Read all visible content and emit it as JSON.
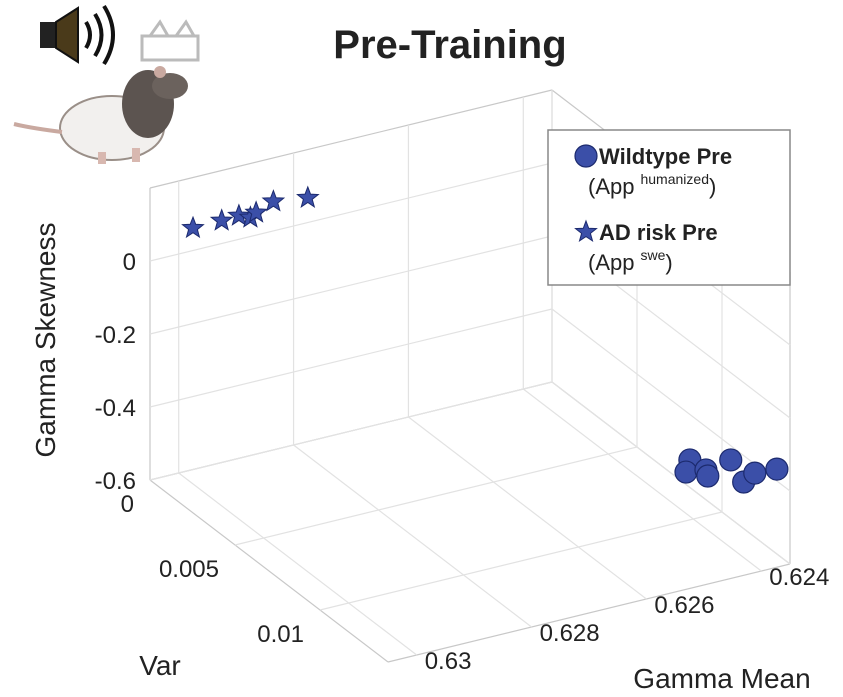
{
  "chart_data": {
    "type": "scatter3d",
    "title": "Pre-Training",
    "xlabel": "Gamma Mean",
    "ylabel": "Var",
    "zlabel": "Gamma Skewness",
    "xlim": [
      0.6235,
      0.6305
    ],
    "xticks": [
      0.624,
      0.626,
      0.628,
      0.63
    ],
    "ylim": [
      0,
      0.014
    ],
    "yticks": [
      0,
      0.005,
      0.01
    ],
    "zlim": [
      -0.6,
      0.2
    ],
    "zticks": [
      -0.6,
      -0.4,
      -0.2,
      0
    ],
    "grid": true,
    "legend": "upper right",
    "series": [
      {
        "name": "Wildtype Pre",
        "note": [
          "(App",
          "humanized",
          ")"
        ],
        "marker": "circle",
        "color": "#3b4fa8",
        "x": [
          0.62416,
          0.62442,
          0.62412,
          0.6242,
          0.62362,
          0.62383,
          0.62353,
          0.62361
        ],
        "y": [
          0.01034,
          0.01099,
          0.01115,
          0.01153,
          0.01092,
          0.01239,
          0.01203,
          0.0136
        ],
        "z": [
          -0.42,
          -0.42,
          -0.42,
          -0.42,
          -0.42,
          -0.42,
          -0.42,
          -0.35
        ]
      },
      {
        "name": "AD risk Pre",
        "note": [
          "(App",
          "swe",
          ")"
        ],
        "marker": "star",
        "color": "#3b4fa8",
        "x": [
          0.6299,
          0.6294,
          0.6291,
          0.6289,
          0.6288,
          0.6285,
          0.6279
        ],
        "y": [
          0.0005,
          0.0005,
          0.0005,
          0.0005,
          0.0005,
          0.0005,
          0.0005
        ],
        "z": [
          0.085,
          0.086,
          0.088,
          0.075,
          0.085,
          0.104,
          0.091
        ]
      }
    ]
  }
}
